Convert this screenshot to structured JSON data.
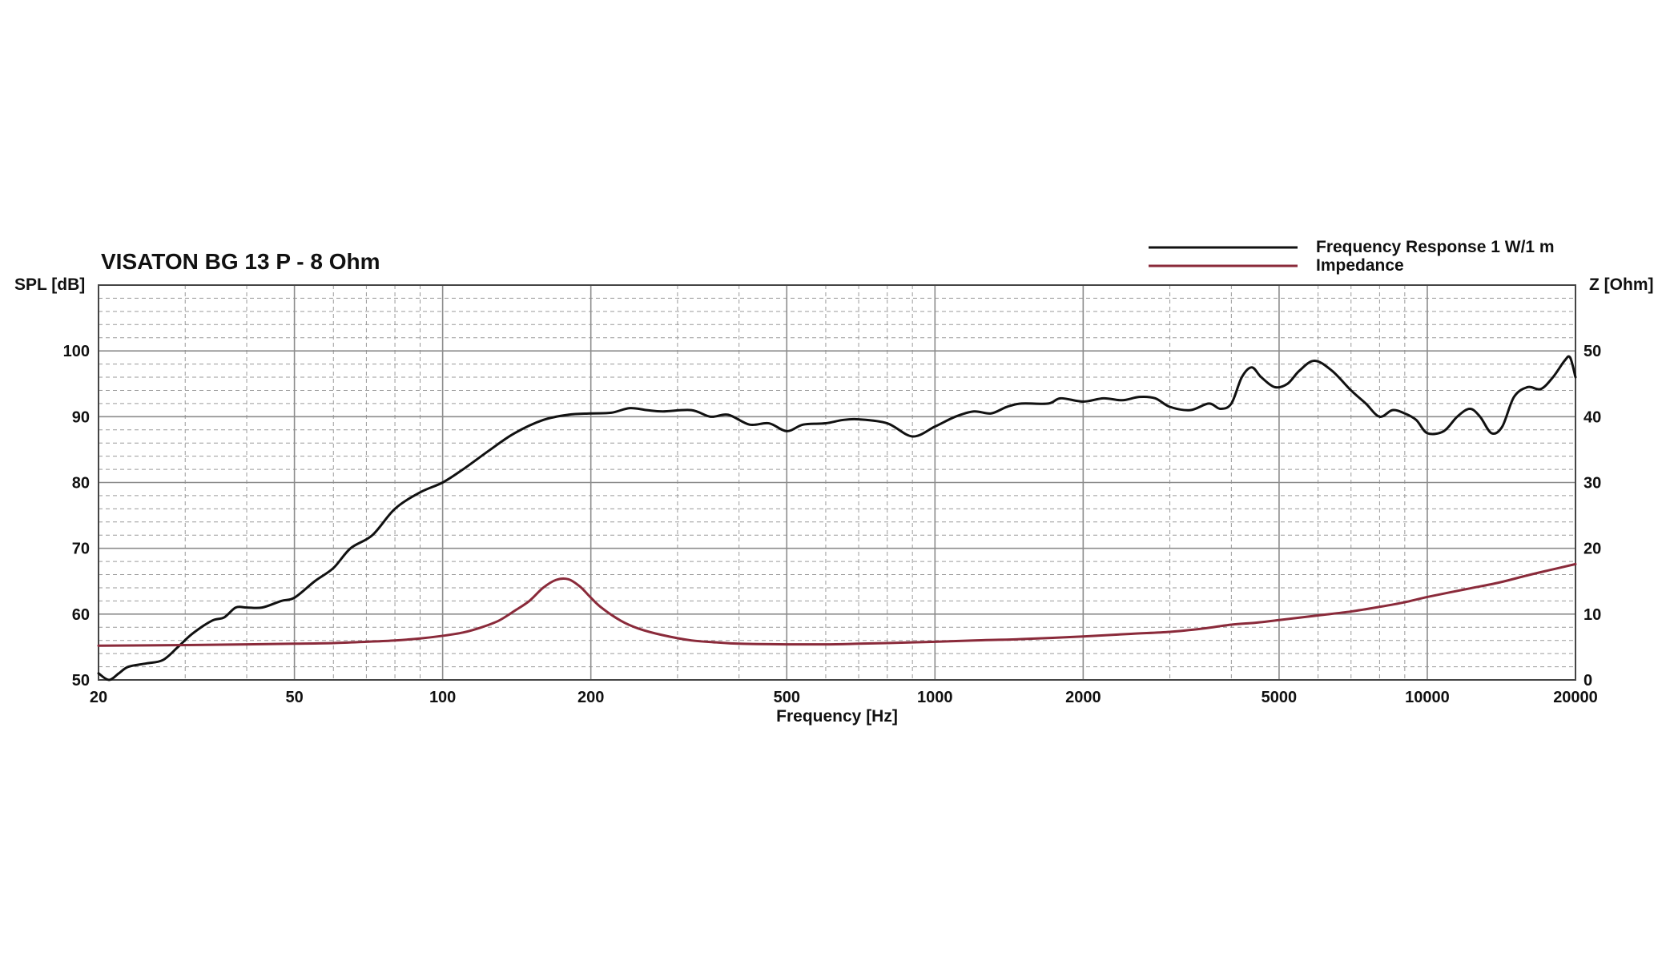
{
  "chart_data": {
    "type": "line",
    "title": "VISATON BG 13 P - 8 Ohm",
    "xlabel": "Frequency [Hz]",
    "ylabel": "SPL [dB]",
    "ylabel_right": "Z [Ohm]",
    "x_scale": "log",
    "xlim": [
      20,
      20000
    ],
    "ylim": [
      50,
      110
    ],
    "ylim_right": [
      0,
      60
    ],
    "x_ticks": [
      20,
      50,
      100,
      200,
      500,
      1000,
      2000,
      5000,
      10000,
      20000
    ],
    "y_ticks": [
      50,
      60,
      70,
      80,
      90,
      100
    ],
    "y_ticks_right": [
      0,
      10,
      20,
      30,
      40,
      50
    ],
    "grid": true,
    "legend_position": "top-right",
    "series": [
      {
        "name": "Frequency Response 1 W/1 m",
        "color": "#111111",
        "axis": "left",
        "points": [
          [
            20,
            51
          ],
          [
            21,
            50
          ],
          [
            22,
            51
          ],
          [
            23,
            52
          ],
          [
            25,
            52.5
          ],
          [
            27,
            53
          ],
          [
            29,
            55
          ],
          [
            31,
            57
          ],
          [
            34,
            59
          ],
          [
            36,
            59.5
          ],
          [
            38,
            61
          ],
          [
            40,
            61
          ],
          [
            43,
            61
          ],
          [
            47,
            62
          ],
          [
            50,
            62.5
          ],
          [
            55,
            65
          ],
          [
            60,
            67
          ],
          [
            65,
            70
          ],
          [
            72,
            72
          ],
          [
            80,
            76
          ],
          [
            90,
            78.5
          ],
          [
            100,
            80
          ],
          [
            110,
            82
          ],
          [
            125,
            85
          ],
          [
            140,
            87.5
          ],
          [
            160,
            89.5
          ],
          [
            180,
            90.3
          ],
          [
            200,
            90.5
          ],
          [
            220,
            90.6
          ],
          [
            240,
            91.3
          ],
          [
            260,
            91
          ],
          [
            280,
            90.8
          ],
          [
            320,
            91
          ],
          [
            350,
            90
          ],
          [
            380,
            90.3
          ],
          [
            420,
            88.8
          ],
          [
            460,
            89
          ],
          [
            500,
            87.8
          ],
          [
            540,
            88.8
          ],
          [
            600,
            89
          ],
          [
            650,
            89.5
          ],
          [
            700,
            89.6
          ],
          [
            800,
            89
          ],
          [
            900,
            87
          ],
          [
            1000,
            88.5
          ],
          [
            1100,
            90
          ],
          [
            1200,
            90.8
          ],
          [
            1300,
            90.5
          ],
          [
            1400,
            91.5
          ],
          [
            1500,
            92
          ],
          [
            1700,
            92
          ],
          [
            1800,
            92.8
          ],
          [
            2000,
            92.3
          ],
          [
            2200,
            92.8
          ],
          [
            2400,
            92.5
          ],
          [
            2600,
            93
          ],
          [
            2800,
            92.8
          ],
          [
            3000,
            91.5
          ],
          [
            3300,
            91
          ],
          [
            3600,
            92
          ],
          [
            3800,
            91.2
          ],
          [
            4000,
            92
          ],
          [
            4200,
            96
          ],
          [
            4400,
            97.5
          ],
          [
            4600,
            96
          ],
          [
            4900,
            94.5
          ],
          [
            5200,
            95
          ],
          [
            5500,
            97
          ],
          [
            5900,
            98.5
          ],
          [
            6400,
            97
          ],
          [
            7000,
            94
          ],
          [
            7500,
            92
          ],
          [
            8000,
            90
          ],
          [
            8500,
            91
          ],
          [
            9000,
            90.5
          ],
          [
            9500,
            89.5
          ],
          [
            10000,
            87.5
          ],
          [
            10800,
            87.8
          ],
          [
            11500,
            90
          ],
          [
            12200,
            91.2
          ],
          [
            12800,
            90
          ],
          [
            13500,
            87.5
          ],
          [
            14200,
            88.5
          ],
          [
            15000,
            93
          ],
          [
            16000,
            94.5
          ],
          [
            17000,
            94.2
          ],
          [
            18000,
            96
          ],
          [
            19000,
            98.5
          ],
          [
            19500,
            99
          ],
          [
            20000,
            96
          ]
        ]
      },
      {
        "name": "Impedance",
        "color": "#8a2a3a",
        "axis": "right",
        "points": [
          [
            20,
            5.2
          ],
          [
            30,
            5.3
          ],
          [
            40,
            5.4
          ],
          [
            50,
            5.5
          ],
          [
            60,
            5.6
          ],
          [
            70,
            5.8
          ],
          [
            80,
            6.0
          ],
          [
            90,
            6.3
          ],
          [
            100,
            6.7
          ],
          [
            110,
            7.2
          ],
          [
            120,
            8.0
          ],
          [
            130,
            9.0
          ],
          [
            140,
            10.5
          ],
          [
            150,
            12.0
          ],
          [
            160,
            14.0
          ],
          [
            170,
            15.2
          ],
          [
            180,
            15.3
          ],
          [
            190,
            14.2
          ],
          [
            200,
            12.5
          ],
          [
            210,
            11.0
          ],
          [
            230,
            9.0
          ],
          [
            250,
            7.8
          ],
          [
            280,
            6.8
          ],
          [
            320,
            6.0
          ],
          [
            360,
            5.7
          ],
          [
            400,
            5.5
          ],
          [
            500,
            5.4
          ],
          [
            600,
            5.4
          ],
          [
            700,
            5.5
          ],
          [
            800,
            5.6
          ],
          [
            900,
            5.7
          ],
          [
            1000,
            5.8
          ],
          [
            1200,
            6.0
          ],
          [
            1500,
            6.2
          ],
          [
            2000,
            6.6
          ],
          [
            2500,
            7.0
          ],
          [
            3000,
            7.3
          ],
          [
            3500,
            7.8
          ],
          [
            4000,
            8.4
          ],
          [
            4500,
            8.7
          ],
          [
            5000,
            9.1
          ],
          [
            6000,
            9.8
          ],
          [
            7000,
            10.4
          ],
          [
            8000,
            11.1
          ],
          [
            9000,
            11.8
          ],
          [
            10000,
            12.6
          ],
          [
            12000,
            13.8
          ],
          [
            14000,
            14.8
          ],
          [
            16000,
            15.9
          ],
          [
            18000,
            16.8
          ],
          [
            20000,
            17.6
          ]
        ]
      }
    ]
  }
}
